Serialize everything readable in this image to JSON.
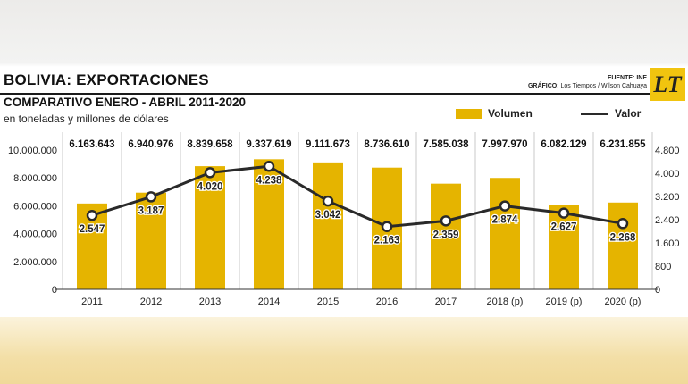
{
  "header": {
    "title": "BOLIVIA: EXPORTACIONES",
    "source_line": "FUENTE: INE",
    "credit_label": "GRÁFICO:",
    "credit_value": "Los Tiempos / Wilson Cahuaya",
    "logo": "LT"
  },
  "colors": {
    "bar": "#e5b400",
    "line": "#2a2a2a"
  },
  "chart_data": {
    "type": "bar",
    "title": "COMPARATIVO ENERO - ABRIL 2011-2020",
    "subtitle": "en toneladas y millones de dólares",
    "categories": [
      "2011",
      "2012",
      "2013",
      "2014",
      "2015",
      "2016",
      "2017",
      "2018 (p)",
      "2019 (p)",
      "2020 (p)"
    ],
    "series": [
      {
        "name": "Volumen",
        "type": "bar",
        "axis": "left",
        "values": [
          6163643,
          6940976,
          8839658,
          9337619,
          9111673,
          8736610,
          7585038,
          7997970,
          6082129,
          6231855
        ],
        "labels": [
          "6.163.643",
          "6.940.976",
          "8.839.658",
          "9.337.619",
          "9.111.673",
          "8.736.610",
          "7.585.038",
          "7.997.970",
          "6.082.129",
          "6.231.855"
        ]
      },
      {
        "name": "Valor",
        "type": "line",
        "axis": "right",
        "values": [
          2547,
          3187,
          4020,
          4238,
          3042,
          2163,
          2359,
          2874,
          2627,
          2268
        ],
        "labels": [
          "2.547",
          "3.187",
          "4.020",
          "4.238",
          "3.042",
          "2.163",
          "2.359",
          "2.874",
          "2.627",
          "2.268"
        ]
      }
    ],
    "y_left": {
      "range": [
        0,
        10000000
      ],
      "ticks": [
        0,
        2000000,
        4000000,
        6000000,
        8000000,
        10000000
      ],
      "tick_labels": [
        "0",
        "2.000.000",
        "4.000.000",
        "6.000.000",
        "8.000.000",
        "10.000.000"
      ]
    },
    "y_right": {
      "range": [
        0,
        4800
      ],
      "ticks": [
        0,
        800,
        1600,
        2400,
        3200,
        4000,
        4800
      ],
      "tick_labels": [
        "0",
        "800",
        "1.600",
        "2.400",
        "3.200",
        "4.000",
        "4.800"
      ]
    },
    "grid": "vertical",
    "legend": "top-right"
  }
}
